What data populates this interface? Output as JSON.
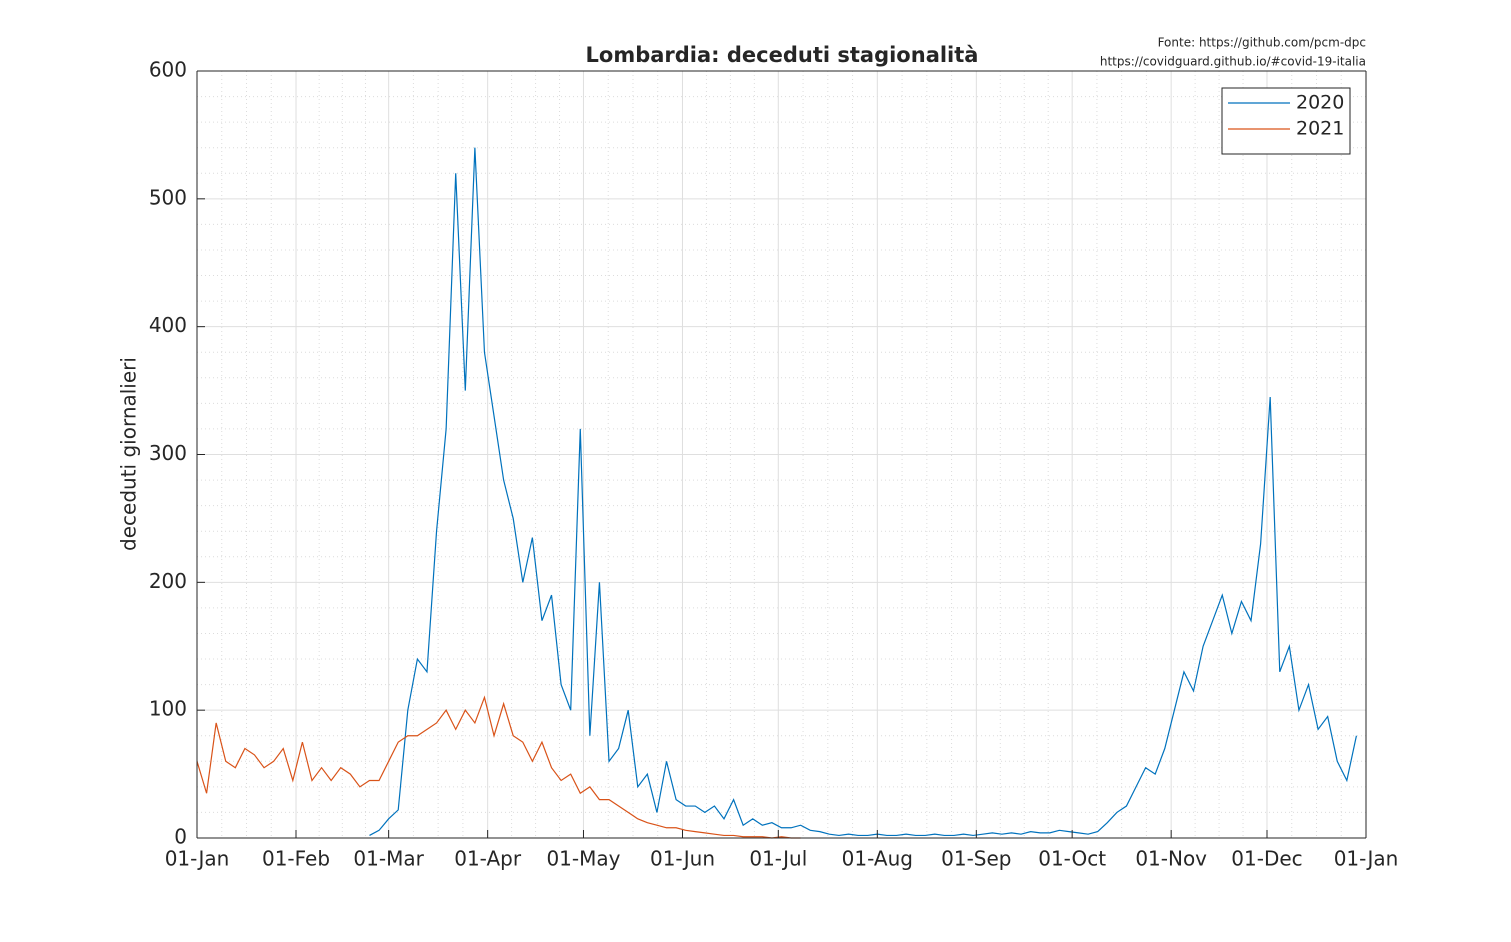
{
  "chart_data": {
    "type": "line",
    "title": "Lombardia: deceduti stagionalità",
    "source_lines": [
      "Fonte: https://github.com/pcm-dpc",
      "https://covidguard.github.io/#covid-19-italia"
    ],
    "y_label": "deceduti giornalieri",
    "x": [
      0,
      3,
      6,
      9,
      12,
      15,
      18,
      21,
      24,
      27,
      30,
      33,
      36,
      39,
      42,
      45,
      48,
      51,
      54,
      57,
      60,
      63,
      66,
      69,
      72,
      75,
      78,
      81,
      84,
      87,
      90,
      93,
      96,
      99,
      102,
      105,
      108,
      111,
      114,
      117,
      120,
      123,
      126,
      129,
      132,
      135,
      138,
      141,
      144,
      147,
      150,
      153,
      156,
      159,
      162,
      165,
      168,
      171,
      174,
      177,
      180,
      183,
      186,
      189,
      192,
      195,
      198,
      201,
      204,
      207,
      210,
      213,
      216,
      219,
      222,
      225,
      228,
      231,
      234,
      237,
      240,
      243,
      246,
      249,
      252,
      255,
      258,
      261,
      264,
      267,
      270,
      273,
      276,
      279,
      282,
      285,
      288,
      291,
      294,
      297,
      300,
      303,
      306,
      309,
      312,
      315,
      318,
      321,
      324,
      327,
      330,
      333,
      336,
      339,
      342,
      345,
      348,
      351,
      354,
      357,
      360,
      363
    ],
    "series": [
      {
        "name": "2020",
        "color": "#0072BD",
        "values": [
          null,
          null,
          null,
          null,
          null,
          null,
          null,
          null,
          null,
          null,
          null,
          null,
          null,
          null,
          null,
          null,
          null,
          null,
          2,
          6,
          15,
          22,
          100,
          140,
          130,
          240,
          320,
          520,
          350,
          540,
          380,
          330,
          280,
          250,
          200,
          235,
          170,
          190,
          120,
          100,
          320,
          80,
          200,
          60,
          70,
          100,
          40,
          50,
          20,
          60,
          30,
          25,
          25,
          20,
          25,
          15,
          30,
          10,
          15,
          10,
          12,
          8,
          8,
          10,
          6,
          5,
          3,
          2,
          3,
          2,
          2,
          3,
          2,
          2,
          3,
          2,
          2,
          3,
          2,
          2,
          3,
          2,
          3,
          4,
          3,
          4,
          3,
          5,
          4,
          4,
          6,
          5,
          4,
          3,
          5,
          12,
          20,
          25,
          40,
          55,
          50,
          70,
          100,
          130,
          115,
          150,
          170,
          190,
          160,
          185,
          170,
          230,
          345,
          130,
          150,
          100,
          120,
          85,
          95,
          60,
          45,
          80
        ]
      },
      {
        "name": "2021",
        "color": "#D95319",
        "values": [
          60,
          35,
          90,
          60,
          55,
          70,
          65,
          55,
          60,
          70,
          45,
          75,
          45,
          55,
          45,
          55,
          50,
          40,
          45,
          45,
          60,
          75,
          80,
          80,
          85,
          90,
          100,
          85,
          100,
          90,
          110,
          80,
          105,
          80,
          75,
          60,
          75,
          55,
          45,
          50,
          35,
          40,
          30,
          30,
          25,
          20,
          15,
          12,
          10,
          8,
          8,
          6,
          5,
          4,
          3,
          2,
          2,
          1,
          1,
          1,
          0,
          1,
          0,
          0,
          null,
          null,
          null,
          null,
          null,
          null,
          null,
          null,
          null,
          null,
          null,
          null,
          null,
          null,
          null,
          null,
          null,
          null,
          null,
          null,
          null,
          null,
          null,
          null,
          null,
          null,
          null,
          null,
          null,
          null,
          null,
          null,
          null,
          null,
          null,
          null,
          null,
          null,
          null,
          null,
          null,
          null,
          null,
          null,
          null,
          null,
          null,
          null,
          null,
          null,
          null,
          null,
          null,
          null,
          null,
          null,
          null,
          null
        ]
      }
    ],
    "xlim": [
      0,
      366
    ],
    "xticks": [
      {
        "value": 0,
        "label": "01-Jan"
      },
      {
        "value": 31,
        "label": "01-Feb"
      },
      {
        "value": 60,
        "label": "01-Mar"
      },
      {
        "value": 91,
        "label": "01-Apr"
      },
      {
        "value": 121,
        "label": "01-May"
      },
      {
        "value": 152,
        "label": "01-Jun"
      },
      {
        "value": 182,
        "label": "01-Jul"
      },
      {
        "value": 213,
        "label": "01-Aug"
      },
      {
        "value": 244,
        "label": "01-Sep"
      },
      {
        "value": 274,
        "label": "01-Oct"
      },
      {
        "value": 305,
        "label": "01-Nov"
      },
      {
        "value": 335,
        "label": "01-Dec"
      },
      {
        "value": 366,
        "label": "01-Jan"
      }
    ],
    "ylim": [
      0,
      600
    ],
    "yticks": [
      0,
      100,
      200,
      300,
      400,
      500,
      600
    ],
    "grid": true,
    "minor_grid": true,
    "legend": "top-right"
  }
}
